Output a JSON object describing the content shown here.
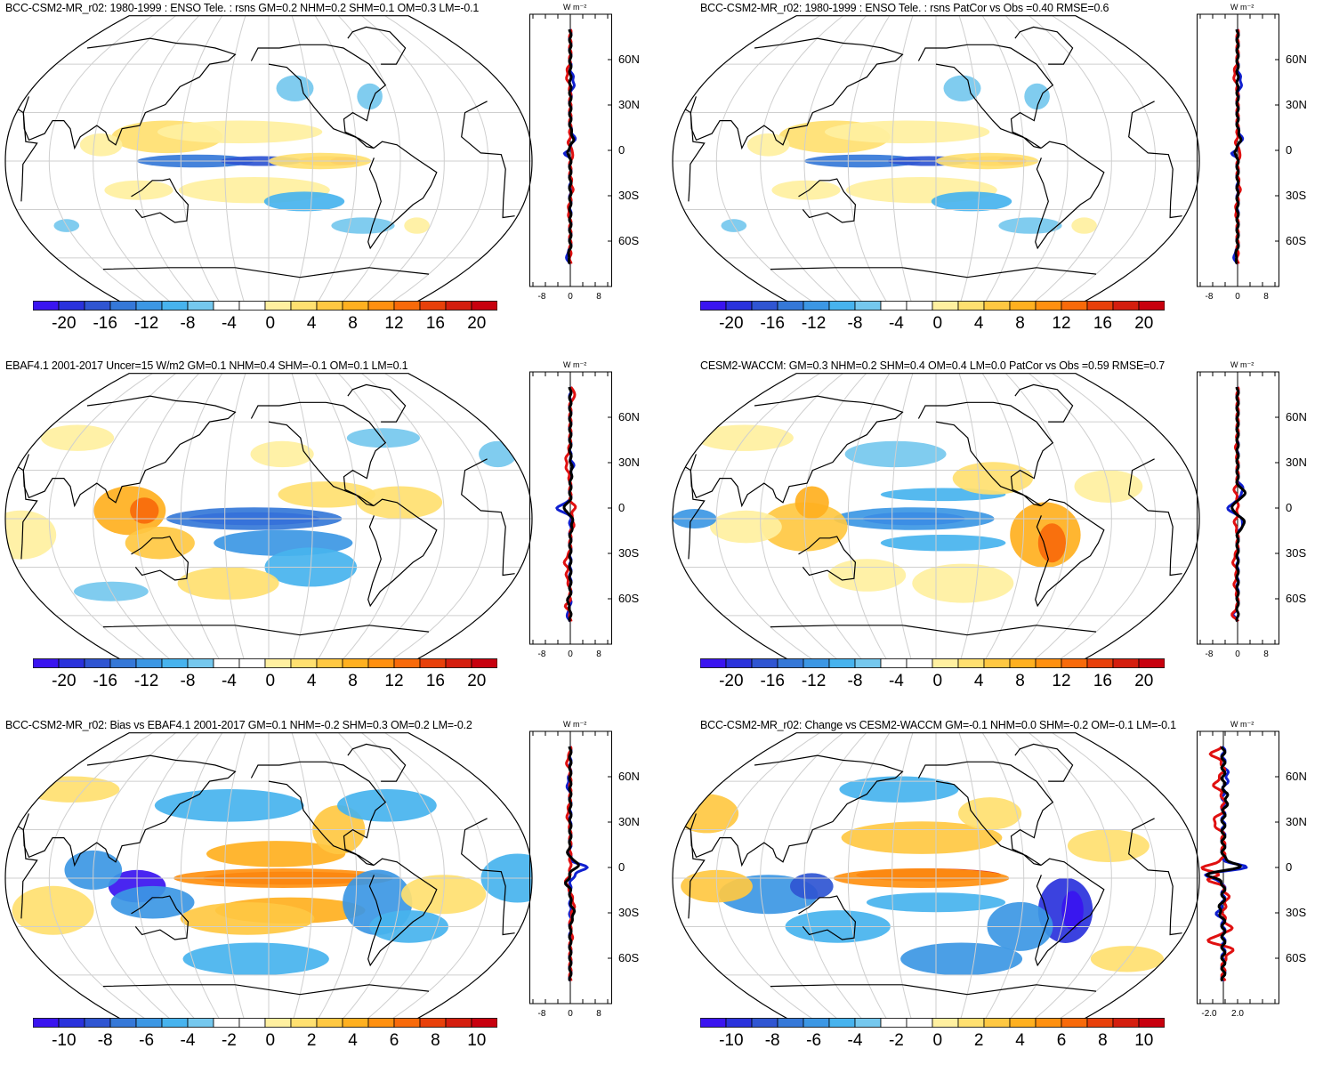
{
  "panels": [
    {
      "id": "p1",
      "title": "BCC-CSM2-MR_r02: 1980-1999 : ENSO Tele. : rsns GM=0.2 NHM=0.2 SHM=0.1 OM=0.3 LM=-0.1",
      "colorbar_labels": [
        "-20",
        "-16",
        "-12",
        "-8",
        "-4",
        "0",
        "4",
        "8",
        "12",
        "16",
        "20"
      ],
      "zonal_x_ticks": [
        "-8",
        "0",
        "8"
      ],
      "zonal_unit": "W m⁻²",
      "lat_labels": [
        "60N",
        "30N",
        "0",
        "30S",
        "60S"
      ],
      "pattern": "ensoA"
    },
    {
      "id": "p2",
      "title": "BCC-CSM2-MR_r02: 1980-1999 : ENSO Tele. : rsns PatCor vs Obs =0.40 RMSE=0.6",
      "colorbar_labels": [
        "-20",
        "-16",
        "-12",
        "-8",
        "-4",
        "0",
        "4",
        "8",
        "12",
        "16",
        "20"
      ],
      "zonal_x_ticks": [
        "-8",
        "0",
        "8"
      ],
      "zonal_unit": "W m⁻²",
      "lat_labels": [
        "60N",
        "30N",
        "0",
        "30S",
        "60S"
      ],
      "pattern": "ensoA"
    },
    {
      "id": "p3",
      "title": "EBAF4.1 2001-2017 Uncer=15 W/m2 GM=0.1 NHM=0.4 SHM=-0.1 OM=0.1 LM=0.1",
      "colorbar_labels": [
        "-20",
        "-16",
        "-12",
        "-8",
        "-4",
        "0",
        "4",
        "8",
        "12",
        "16",
        "20"
      ],
      "zonal_x_ticks": [
        "-8",
        "0",
        "8"
      ],
      "zonal_unit": "W m⁻²",
      "lat_labels": [
        "60N",
        "30N",
        "0",
        "30S",
        "60S"
      ],
      "pattern": "obs"
    },
    {
      "id": "p4",
      "title": "CESM2-WACCM: GM=0.3 NHM=0.2 SHM=0.4 OM=0.4 LM=0.0 PatCor vs Obs =0.59 RMSE=0.7",
      "colorbar_labels": [
        "-20",
        "-16",
        "-12",
        "-8",
        "-4",
        "0",
        "4",
        "8",
        "12",
        "16",
        "20"
      ],
      "zonal_x_ticks": [
        "-8",
        "0",
        "8"
      ],
      "zonal_unit": "W m⁻²",
      "lat_labels": [
        "60N",
        "30N",
        "0",
        "30S",
        "60S"
      ],
      "pattern": "cesm"
    },
    {
      "id": "p5",
      "title": "BCC-CSM2-MR_r02: Bias vs EBAF4.1 2001-2017 GM=0.1 NHM=-0.2 SHM=0.3 OM=0.2 LM=-0.2",
      "colorbar_labels": [
        "-10",
        "-8",
        "-6",
        "-4",
        "-2",
        "0",
        "2",
        "4",
        "6",
        "8",
        "10"
      ],
      "zonal_x_ticks": [
        "-8",
        "0",
        "8"
      ],
      "zonal_unit": "W m⁻²",
      "lat_labels": [
        "60N",
        "30N",
        "0",
        "30S",
        "60S"
      ],
      "pattern": "bias"
    },
    {
      "id": "p6",
      "title": "BCC-CSM2-MR_r02: Change vs CESM2-WACCM GM=-0.1 NHM=0.0 SHM=-0.2 OM=-0.1 LM=-0.1",
      "colorbar_labels": [
        "-10",
        "-8",
        "-6",
        "-4",
        "-2",
        "0",
        "2",
        "4",
        "6",
        "8",
        "10"
      ],
      "zonal_x_ticks": [
        "-2.0",
        "2.0"
      ],
      "zonal_unit": "W m⁻²",
      "lat_labels": [
        "60N",
        "30N",
        "0",
        "30S",
        "60S"
      ],
      "pattern": "change"
    }
  ],
  "colors": {
    "scale": [
      "#3a14f0",
      "#2a32dc",
      "#2f55d2",
      "#3578d8",
      "#3c97e4",
      "#47b3ee",
      "#75c8ee",
      "#ffffff",
      "#ffffff",
      "#fff0a0",
      "#ffe070",
      "#ffc842",
      "#ffb020",
      "#ff9010",
      "#f86a0a",
      "#e8400a",
      "#d41e0e",
      "#c8000e"
    ],
    "grid": "#cfcfcf",
    "coast": "#000000",
    "model_line": "#e01010",
    "obs_line": "#1020d0",
    "mean_line": "#000000"
  }
}
